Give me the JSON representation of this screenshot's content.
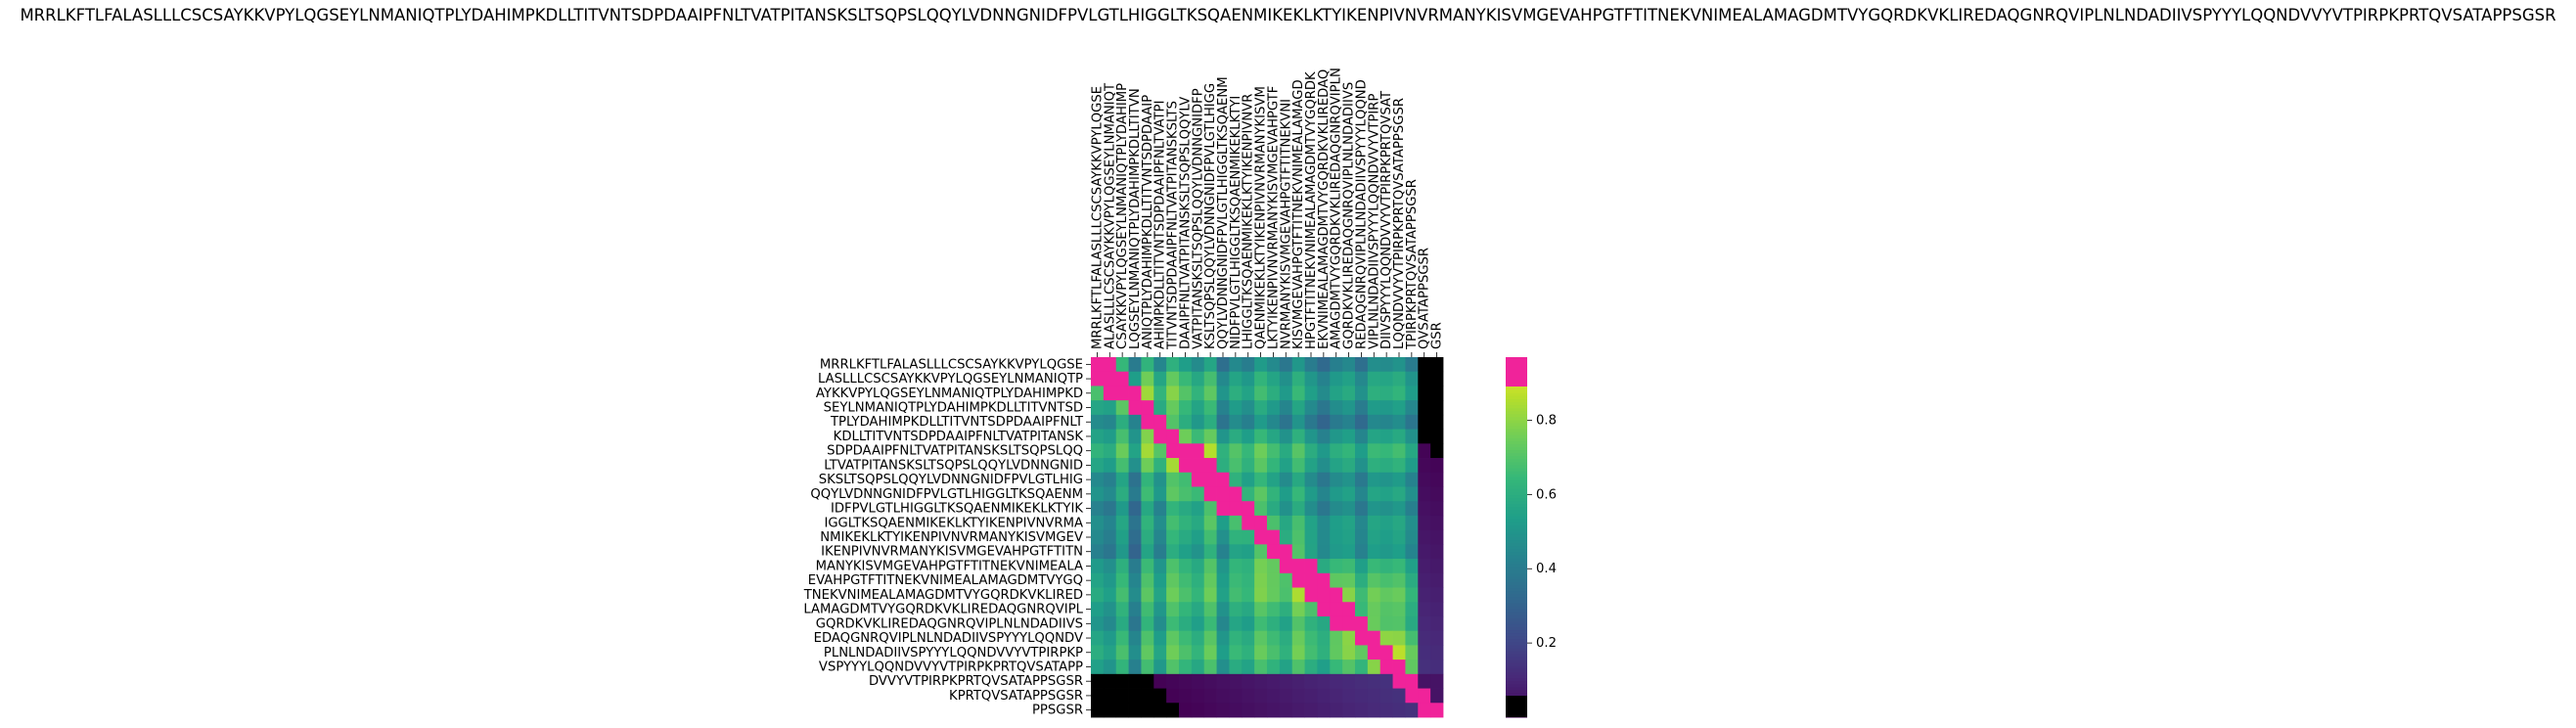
{
  "chart_data": {
    "type": "heatmap",
    "title": "MRRLKFTLFALASLLLCSCSAYKKVPYLQGSEYLNMANIQTPLYDAHIMPKDLLTITVNTSDPDAAIPFNLTVATPITANSKSLTSQPSLQQYLVDNNGNIDFPVLGTLHIGGLTKSQAENMIKEKLKTYIKENPIVNVRMANYKISVMGEVAHPGTFTITNEKVNIMEALAMAGDMTVYGQRDKVKLIREDAQGNRQVIPLNLNDADIIVSPYYYLQQNDVVYVTPIRPKPRTQVSATAPPSGSR",
    "row_labels": [
      "MRRLKFTLFALASLLLCSCSAYKKVPYLQGSE",
      "LASLLLCSCSAYKKVPYLQGSEYLNMANIQTP",
      "AYKKVPYLQGSEYLNMANIQTPLYDAHIMPKD",
      "SEYLNMANIQTPLYDAHIMPKDLLTITVNTSD",
      "TPLYDAHIMPKDLLTITVNTSDPDAAIPFNLT",
      "KDLLTITVNTSDPDAAIPFNLTVATPITANSK",
      "SDPDAAIPFNLTVATPITANSKSLTSQPSLQQ",
      "LTVATPITANSKSLTSQPSLQQYLVDNNGNID",
      "SKSLTSQPSLQQYLVDNNGNIDFPVLGTLHIG",
      "QQYLVDNNGNIDFPVLGTLHIGGLTKSQAENM",
      "IDFPVLGTLHIGGLTKSQAENMIKEKLKTYIK",
      "IGGLTKSQAENMIKEKLKTYIKENPIVNVRMA",
      "NMIKEKLKTYIKENPIVNVRMANYKISVMGEV",
      "IKENPIVNVRMANYKISVMGEVAHPGTFTITN",
      "MANYKISVMGEVAHPGTFTITNEKVNIMEALA",
      "EVAHPGTFTITNEKVNIMEALAMAGDMTVYGQ",
      "TNEKVNIMEALAMAGDMTVYGQRDKVKLIRED",
      "LAMAGDMTVYGQRDKVKLIREDAQGNRQVIPL",
      "GQRDKVKLIREDAQGNRQVIPLNLNDADIIVS",
      "EDAQGNRQVIPLNLNDADIIVSPYYYLQQNDV",
      "PLNLNDADIIVSPYYYLQQNDVVYVTPIRPKP",
      "VSPYYYLQQNDVVYVTPIRPKPRTQVSATAPP",
      "DVVYVTPIRPKPRTQVSATAPPSGSR",
      "KPRTQVSATAPPSGSR",
      "PPSGSR"
    ],
    "col_labels": [
      "MRRLKFTLFALASLLLCSCSAYKKVPYLQGSE",
      "ALASLLLCSCSAYKKVPYLQGSEYLNMANIQT",
      "CSAYKKVPYLQGSEYLNMANIQTPLYDAHIMP",
      "LQGSEYLNMANIQTPLYDAHIMPKDLLTITVN",
      "ANIQTPLYDAHIMPKDLLTITVNTSDPDAAIP",
      "AHIMPKDLLTITVNTSDPDAAIPFNLTVATPI",
      "TITVNTSDPDAAIPFNLTVATPITANSKSLTS",
      "DAAIPFNLTVATPITANSKSLTSQPSLQQYLV",
      "VATPITANSKSLTSQPSLQQYLVDNNGNIDFP",
      "KSLTSQPSLQQYLVDNNGNIDFPVLGTLHIGG",
      "QQYLVDNNGNIDFPVLGTLHIGGLTKSQAENM",
      "NIDFPVLGTLHIGGLTKSQAENMIKEKLKTYI",
      "LHIGGLTKSQAENMIKEKLKTYIKENPIVNVR",
      "QAENMIKEKLKTYIKENPIVNVRMANYKISVM",
      "LKTYIKENPIVNVRMANYKISVMGEVAHPGTF",
      "NVRMANYKISVMGEVAHPGTFTITNEKVNI",
      "KISVMGEVAHPGTFTITNEKVNIMEALAMAGD",
      "HPGTFTITNEKVNIMEALAMAGDMTVYGQRDK",
      "EKVNIMEALAMAGDMTVYGQRDKVKLIREDAQ",
      "AMAGDMTVYGQRDKVKLIREDAQGNRQVIPLN",
      "GQRDKVKLIREDAQGNRQVIPLNLNDADIIVS",
      "REDAQGNRQVIPLNLNDADIIVSPYYYLQQND",
      "VIPLNLNDADIIVSPYYYLQQNDVVYVTPIRP",
      "DIIVSPYYYLQQNDVVYVTPIRPKPRTQVSAT",
      "LQQNDVVYVTPIRPKPRTQVSATAPPSGSR",
      "TPIRPKPRTQVSATAPPSGSR",
      "QVSATAPPSGSR",
      "GSR"
    ],
    "colorbar_ticks": [
      0.2,
      0.4,
      0.6,
      0.8
    ],
    "vmin": 0.0,
    "vmax": 0.97,
    "colormap": "viridis",
    "grid": false,
    "colorbar_position": "right",
    "colors": {
      "above_range": "#f0239a",
      "below_range": "#000000"
    }
  }
}
